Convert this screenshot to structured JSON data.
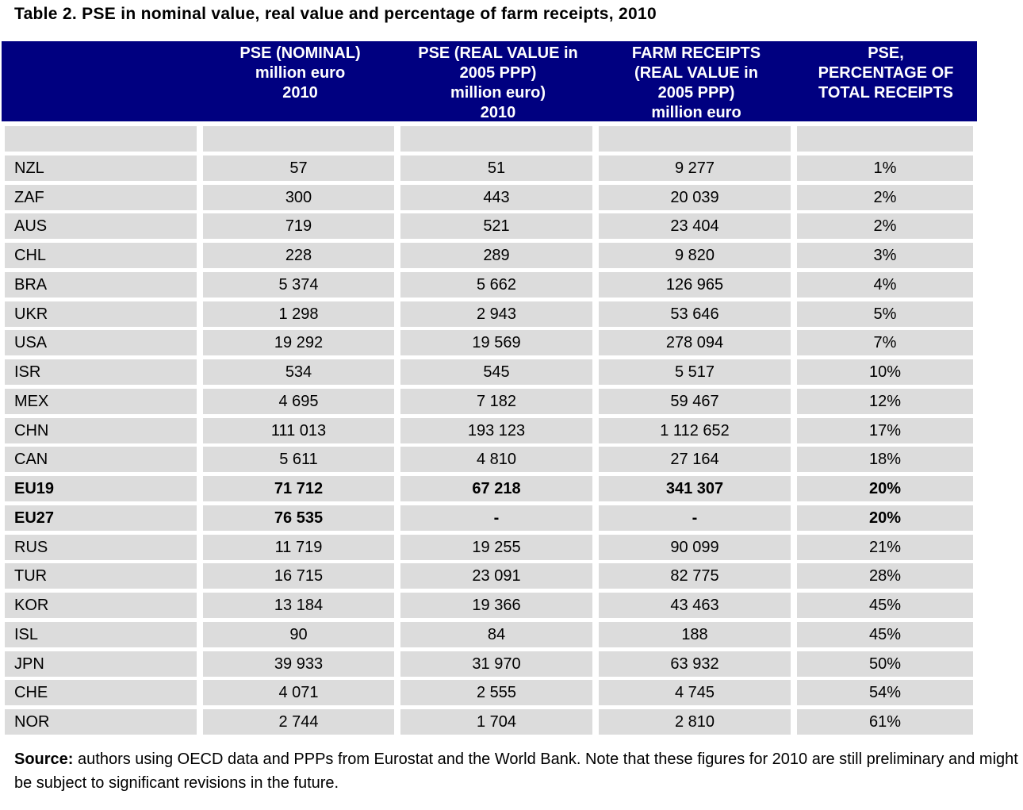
{
  "title": "Table 2. PSE in nominal value, real value and percentage of farm receipts, 2010",
  "headers": [
    "",
    "PSE  (NOMINAL)\nmillion euro\n2010",
    "PSE (REAL VALUE in\n2005 PPP)\nmillion euro)\n2010",
    "FARM RECEIPTS\n(REAL VALUE in\n2005 PPP)\nmillion euro",
    "PSE,\nPERCENTAGE OF\nTOTAL RECEIPTS"
  ],
  "rows": [
    {
      "country": "",
      "nominal": "",
      "real": "",
      "receipts": "",
      "pct": "",
      "bold": false
    },
    {
      "country": "NZL",
      "nominal": "57",
      "real": "51",
      "receipts": "9 277",
      "pct": "1%",
      "bold": false
    },
    {
      "country": "ZAF",
      "nominal": "300",
      "real": "443",
      "receipts": "20 039",
      "pct": "2%",
      "bold": false
    },
    {
      "country": "AUS",
      "nominal": "719",
      "real": "521",
      "receipts": "23 404",
      "pct": "2%",
      "bold": false
    },
    {
      "country": "CHL",
      "nominal": "228",
      "real": "289",
      "receipts": "9 820",
      "pct": "3%",
      "bold": false
    },
    {
      "country": "BRA",
      "nominal": "5 374",
      "real": "5 662",
      "receipts": "126 965",
      "pct": "4%",
      "bold": false
    },
    {
      "country": "UKR",
      "nominal": "1 298",
      "real": "2 943",
      "receipts": "53 646",
      "pct": "5%",
      "bold": false
    },
    {
      "country": "USA",
      "nominal": "19 292",
      "real": "19 569",
      "receipts": "278 094",
      "pct": "7%",
      "bold": false
    },
    {
      "country": "ISR",
      "nominal": "534",
      "real": "545",
      "receipts": "5 517",
      "pct": "10%",
      "bold": false
    },
    {
      "country": "MEX",
      "nominal": "4 695",
      "real": "7 182",
      "receipts": "59 467",
      "pct": "12%",
      "bold": false
    },
    {
      "country": "CHN",
      "nominal": "111 013",
      "real": "193 123",
      "receipts": "1 112 652",
      "pct": "17%",
      "bold": false
    },
    {
      "country": "CAN",
      "nominal": "5 611",
      "real": "4 810",
      "receipts": "27 164",
      "pct": "18%",
      "bold": false
    },
    {
      "country": "EU19",
      "nominal": "71 712",
      "real": "67 218",
      "receipts": "341 307",
      "pct": "20%",
      "bold": true
    },
    {
      "country": "EU27",
      "nominal": "76 535",
      "real": "-",
      "receipts": "-",
      "pct": "20%",
      "bold": true
    },
    {
      "country": "RUS",
      "nominal": "11 719",
      "real": "19 255",
      "receipts": "90 099",
      "pct": "21%",
      "bold": false
    },
    {
      "country": "TUR",
      "nominal": "16 715",
      "real": "23 091",
      "receipts": "82 775",
      "pct": "28%",
      "bold": false
    },
    {
      "country": "KOR",
      "nominal": "13 184",
      "real": "19 366",
      "receipts": "43 463",
      "pct": "45%",
      "bold": false
    },
    {
      "country": "ISL",
      "nominal": "90",
      "real": "84",
      "receipts": "188",
      "pct": "45%",
      "bold": false
    },
    {
      "country": "JPN",
      "nominal": "39 933",
      "real": "31 970",
      "receipts": "63 932",
      "pct": "50%",
      "bold": false
    },
    {
      "country": "CHE",
      "nominal": "4 071",
      "real": "2 555",
      "receipts": "4 745",
      "pct": "54%",
      "bold": false
    },
    {
      "country": "NOR",
      "nominal": "2 744",
      "real": "1 704",
      "receipts": "2 810",
      "pct": "61%",
      "bold": false
    }
  ],
  "source": {
    "label": "Source:",
    "text": " authors using OECD data and PPPs from Eurostat and the World Bank. Note that these figures for 2010 are still preliminary and might be subject to significant revisions in the future."
  },
  "colors": {
    "header_bg": "#000080",
    "header_text": "#ffffff",
    "cell_bg": "#dcdcdc"
  }
}
